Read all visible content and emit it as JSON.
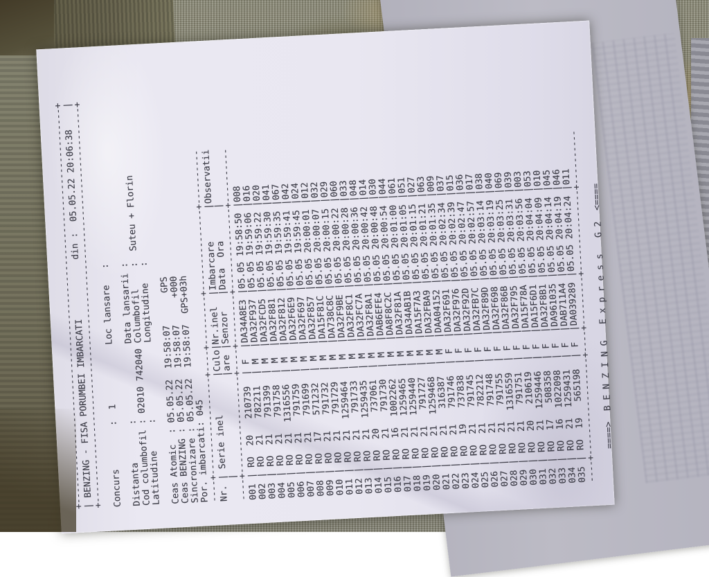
{
  "scene": {
    "carpet_olive": "#8d8c7a",
    "carpet_dark_patch": "#5d5942",
    "carpet_ornament_tan": "#b59a66",
    "paper_color": "#e9e7f1",
    "ink_color": "#3c3c46",
    "back_sheet_color": "#b8b7c1",
    "orientation_deg": -93
  },
  "document": {
    "header": {
      "title": "BENZING - FISA PORUMBEI IMBARCATI",
      "din_label": "din :",
      "printed_datetime": "05.05.22 20:06:38"
    },
    "info": {
      "concurs_label": "Concurs",
      "concurs_value": "1",
      "loc_lansare_label": "Loc lansare",
      "distanta_label": "Distanta",
      "data_lansarii_label": "Data lansarii",
      "cod_columbofil_label": "Cod columbofil",
      "cod_columbofil_value": "02010 742040",
      "columbofil_label": "Columbofil",
      "columbofil_value": "Suteu + Florin",
      "latitudine_label": "Latitudine",
      "longitudine_label": "Longitudine"
    },
    "clocks": [
      {
        "label": "Ceas Atomic",
        "date": "05.05.22",
        "time": "19:58:07",
        "suffix": "GPS"
      },
      {
        "label": "Ceas BENZING",
        "date": "05.05.22",
        "time": "19:58:07",
        "suffix": "+000"
      },
      {
        "label": "Sincronizare",
        "date": "05.05.22",
        "time": "19:58:07",
        "suffix": "GPS+03h"
      }
    ],
    "por_imbarcati": {
      "label": "Por. imbarcati",
      "value": "045"
    },
    "table": {
      "columns": [
        {
          "line1": "Nr.",
          "line2": ""
        },
        {
          "line1": "Serie inel",
          "line2": ""
        },
        {
          "line1": "Culo",
          "line2": "are"
        },
        {
          "line1": "Nr.inel",
          "line2": "Senzor"
        },
        {
          "line1": "Imbarcare",
          "line2": "Data  Ora"
        },
        {
          "line1": "Observatii",
          "line2": ""
        }
      ],
      "rows": [
        [
          "001",
          "RO",
          "20",
          "210739",
          "F",
          "DA34A8E3",
          "05.05",
          "19:58:50",
          "008"
        ],
        [
          "002",
          "RO",
          "21",
          "782211",
          "M",
          "DA32F937",
          "05.05",
          "19:59:06",
          "016"
        ],
        [
          "003",
          "RO",
          "21",
          "791399",
          "M",
          "DA32FCD5",
          "05.05",
          "19:59:22",
          "020"
        ],
        [
          "004",
          "RO",
          "21",
          "791758",
          "M",
          "DA32F881",
          "05.05",
          "19:59:30",
          "041"
        ],
        [
          "005",
          "RO",
          "21",
          "1316556",
          "M",
          "DA32F812",
          "05.05",
          "19:59:35",
          "067"
        ],
        [
          "006",
          "RO",
          "21",
          "791759",
          "M",
          "DA32F6E9",
          "05.05",
          "19:59:41",
          "042"
        ],
        [
          "007",
          "RO",
          "21",
          "791699",
          "M",
          "DA32F697",
          "05.05",
          "19:59:45",
          "024"
        ],
        [
          "008",
          "RO",
          "17",
          "571232",
          "M",
          "DA32F857",
          "05.05",
          "20:00:01",
          "012"
        ],
        [
          "009",
          "RO",
          "21",
          "791732",
          "M",
          "DA15F81C",
          "05.05",
          "20:00:07",
          "032"
        ],
        [
          "010",
          "RO",
          "21",
          "791729",
          "M",
          "DA738C8C",
          "05.05",
          "20:00:15",
          "029"
        ],
        [
          "011",
          "RO",
          "21",
          "1259464",
          "M",
          "DA32F9BE",
          "05.05",
          "20:00:22",
          "060"
        ],
        [
          "012",
          "RO",
          "21",
          "791733",
          "M",
          "DA32F8C1",
          "05.05",
          "20:00:28",
          "033"
        ],
        [
          "013",
          "RO",
          "21",
          "1259435",
          "M",
          "DA32FC7A",
          "05.05",
          "20:00:36",
          "048"
        ],
        [
          "014",
          "RO",
          "20",
          "737061",
          "M",
          "DA32F8A1",
          "05.05",
          "20:00:42",
          "014"
        ],
        [
          "015",
          "RO",
          "21",
          "791730",
          "M",
          "DAB6EFE4",
          "05.05",
          "20:00:48",
          "030"
        ],
        [
          "016",
          "RO",
          "16",
          "1002262",
          "M",
          "DA8F8C2C",
          "05.05",
          "20:00:54",
          "044"
        ],
        [
          "017",
          "RO",
          "21",
          "1259465",
          "M",
          "DA32F81A",
          "05.05",
          "20:01:00",
          "061"
        ],
        [
          "018",
          "RO",
          "21",
          "1259440",
          "M",
          "DA34AB1B",
          "05.05",
          "20:01:05",
          "051"
        ],
        [
          "019",
          "RO",
          "21",
          "791727",
          "M",
          "DA15F7A3",
          "05.05",
          "20:01:15",
          "027"
        ],
        [
          "020",
          "RO",
          "21",
          "1259468",
          "M",
          "DA32FBA9",
          "05.05",
          "20:01:21",
          "063"
        ],
        [
          "021",
          "RO",
          "21",
          "316387",
          "M",
          "DAA04152",
          "05.05",
          "20:01:35",
          "009"
        ],
        [
          "022",
          "RO",
          "21",
          "791746",
          "F",
          "DA32F691",
          "05.05",
          "20:02:34",
          "037"
        ],
        [
          "023",
          "RO",
          "19",
          "737838",
          "F",
          "DA32F976",
          "05.05",
          "20:02:39",
          "015"
        ],
        [
          "024",
          "RO",
          "21",
          "791745",
          "F",
          "DA32F92D",
          "05.05",
          "20:02:47",
          "036"
        ],
        [
          "025",
          "RO",
          "21",
          "782212",
          "F",
          "DA32FB7C",
          "05.05",
          "20:02:57",
          "017"
        ],
        [
          "026",
          "RO",
          "21",
          "791748",
          "F",
          "DA32F89D",
          "05.05",
          "20:03:14",
          "038"
        ],
        [
          "027",
          "RO",
          "21",
          "791755",
          "F",
          "DA32F698",
          "05.05",
          "20:03:19",
          "040"
        ],
        [
          "028",
          "RO",
          "21",
          "1316559",
          "F",
          "DA32F86B",
          "05.05",
          "20:03:25",
          "069"
        ],
        [
          "029",
          "RO",
          "21",
          "791751",
          "F",
          "DA32F795",
          "05.05",
          "20:03:31",
          "039"
        ],
        [
          "030",
          "RO",
          "20",
          "210619",
          "F",
          "DA15F78A",
          "05.05",
          "20:03:56",
          "003"
        ],
        [
          "031",
          "RO",
          "21",
          "1259446",
          "F",
          "DA15F6D1",
          "05.05",
          "20:04:04",
          "053"
        ],
        [
          "032",
          "RO",
          "17",
          "508358",
          "F",
          "DA32F8B1",
          "05.05",
          "20:04:09",
          "010"
        ],
        [
          "033",
          "RO",
          "16",
          "1022098",
          "F",
          "DA961035",
          "05.05",
          "20:04:14",
          "045"
        ],
        [
          "034",
          "RO",
          "21",
          "1259431",
          "F",
          "DAB711A4",
          "05.05",
          "20:04:19",
          "046"
        ],
        [
          "035",
          "RO",
          "19",
          "565198",
          "F",
          "DA039289",
          "05.05",
          "20:04:24",
          "011"
        ]
      ]
    },
    "footer": {
      "arrow_left": "====>",
      "brand": "B E N Z I N G",
      "product": "E x p r e s s",
      "model": "G 2",
      "arrow_right": "<===="
    }
  }
}
